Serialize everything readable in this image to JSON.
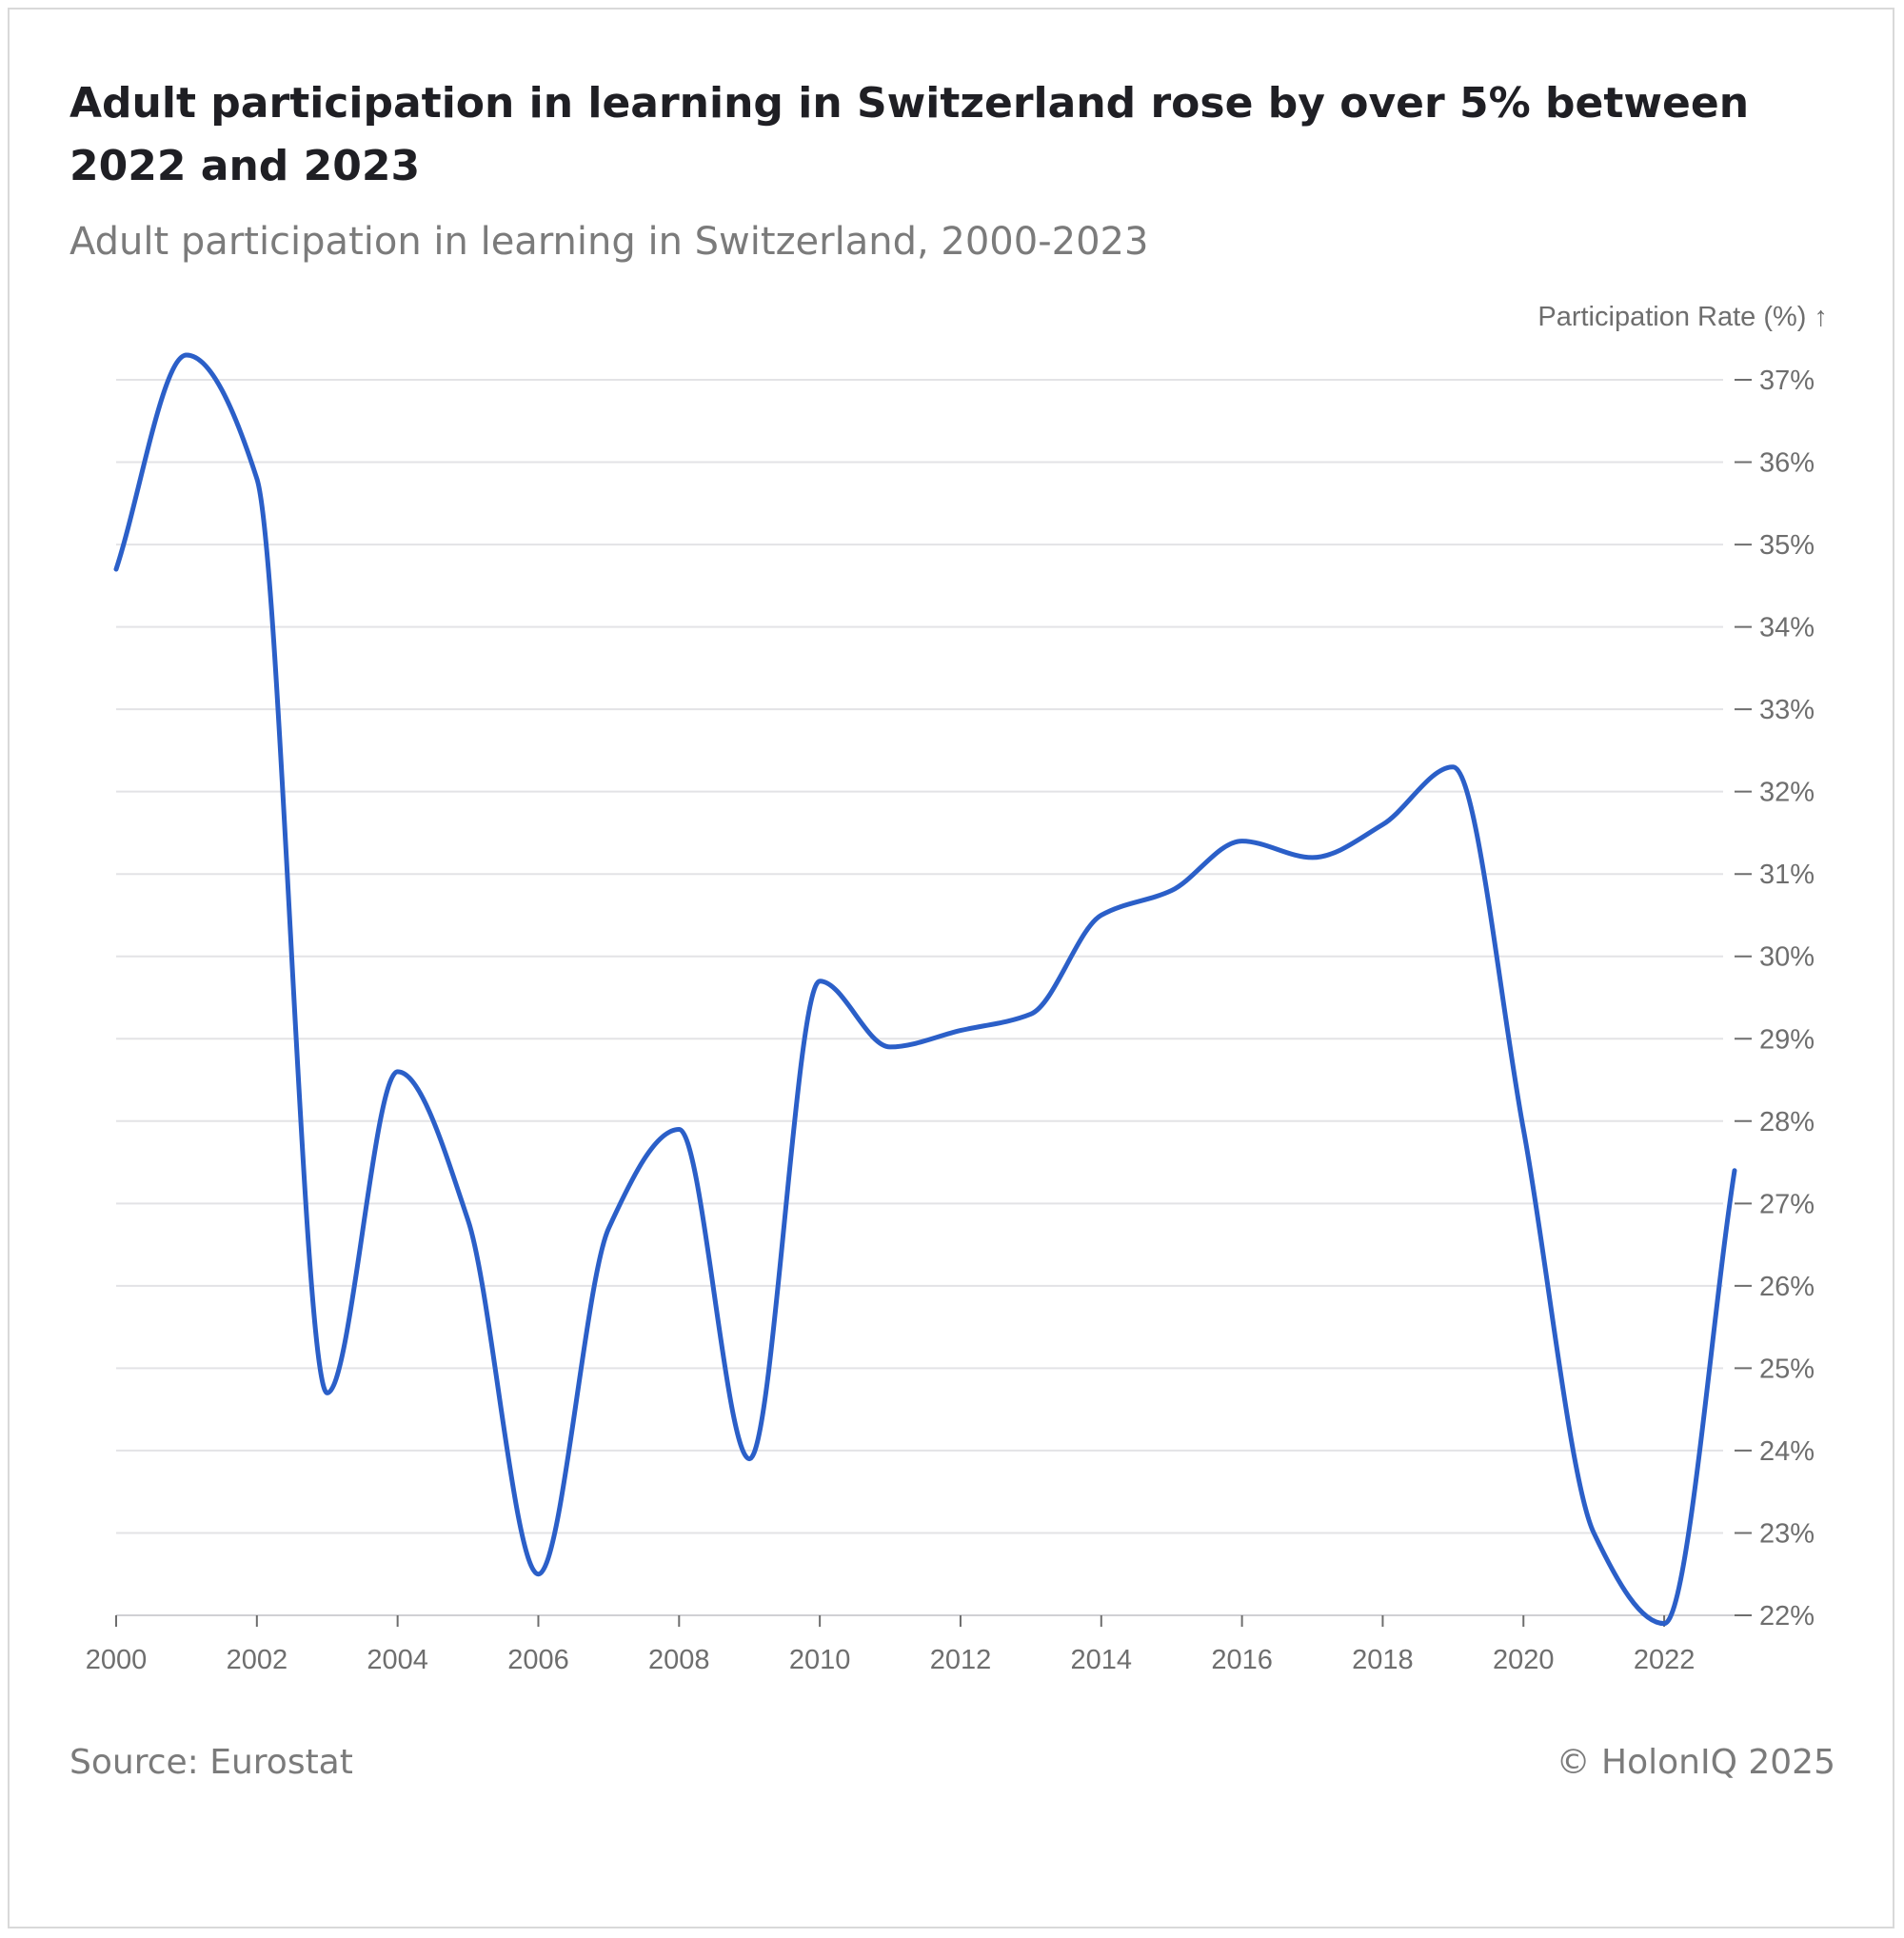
{
  "header": {
    "title": "Adult participation in learning in Switzerland rose by over 5% between 2022 and 2023",
    "subtitle": "Adult participation in learning in Switzerland, 2000-2023"
  },
  "footer": {
    "source": "Source: Eurostat",
    "copyright": "© HolonIQ 2025"
  },
  "colors": {
    "line": "#2b5fc8",
    "grid": "#e3e3e6",
    "tick_text": "#6e6e6e"
  },
  "chart_data": {
    "type": "line",
    "title": "Adult participation in learning in Switzerland rose by over 5% between 2022 and 2023",
    "subtitle": "Adult participation in learning in Switzerland, 2000-2023",
    "ylabel": "Participation Rate (%) ↑",
    "xlabel": "",
    "x": [
      2000,
      2001,
      2002,
      2003,
      2004,
      2005,
      2006,
      2007,
      2008,
      2009,
      2010,
      2011,
      2012,
      2013,
      2014,
      2015,
      2016,
      2017,
      2018,
      2019,
      2020,
      2021,
      2022,
      2023
    ],
    "series": [
      {
        "values": [
          34.7,
          37.3,
          35.8,
          24.7,
          28.6,
          26.8,
          22.5,
          26.7,
          27.9,
          23.9,
          29.7,
          28.9,
          29.1,
          29.3,
          30.5,
          30.8,
          31.4,
          31.2,
          31.6,
          32.3,
          27.9,
          23.0,
          21.9,
          27.4
        ]
      }
    ],
    "xlim": [
      2000,
      2023
    ],
    "ylim": [
      22,
      37
    ],
    "x_ticks": [
      "2000",
      "2002",
      "2004",
      "2006",
      "2008",
      "2010",
      "2012",
      "2014",
      "2016",
      "2018",
      "2020",
      "2022"
    ],
    "y_ticks": [
      "22%",
      "23%",
      "24%",
      "25%",
      "26%",
      "27%",
      "28%",
      "29%",
      "30%",
      "31%",
      "32%",
      "33%",
      "34%",
      "35%",
      "36%",
      "37%"
    ],
    "y_axis_position": "right",
    "grid": "horizontal"
  }
}
